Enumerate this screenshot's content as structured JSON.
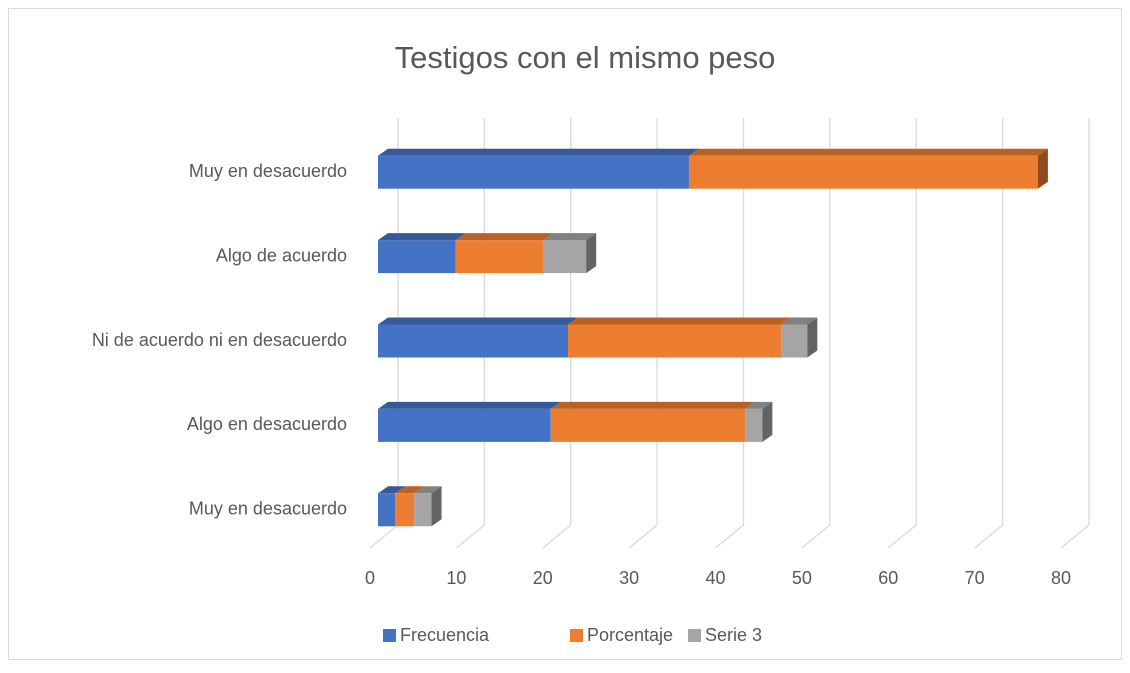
{
  "chart_data": {
    "type": "bar3d_stacked_horizontal",
    "title": "Testigos con el mismo peso",
    "categories": [
      "Muy en desacuerdo",
      "Algo en desacuerdo",
      "Ni de acuerdo ni en desacuerdo",
      "Algo de acuerdo",
      "Muy en desacuerdo"
    ],
    "series": [
      {
        "name": "Frecuencia",
        "color": "#4472c4",
        "values": [
          2,
          20,
          22,
          9,
          36
        ]
      },
      {
        "name": "Porcentaje",
        "color": "#ed7d31",
        "values": [
          2.2,
          22.5,
          24.7,
          10.1,
          40.4
        ]
      },
      {
        "name": "Serie 3",
        "color": "#a5a5a5",
        "values": [
          2,
          2,
          3,
          5,
          0
        ]
      }
    ],
    "xlim": [
      0,
      80
    ],
    "xticks": [
      0,
      10,
      20,
      30,
      40,
      50,
      60,
      70,
      80
    ],
    "grid": true,
    "legend": "bottom"
  }
}
